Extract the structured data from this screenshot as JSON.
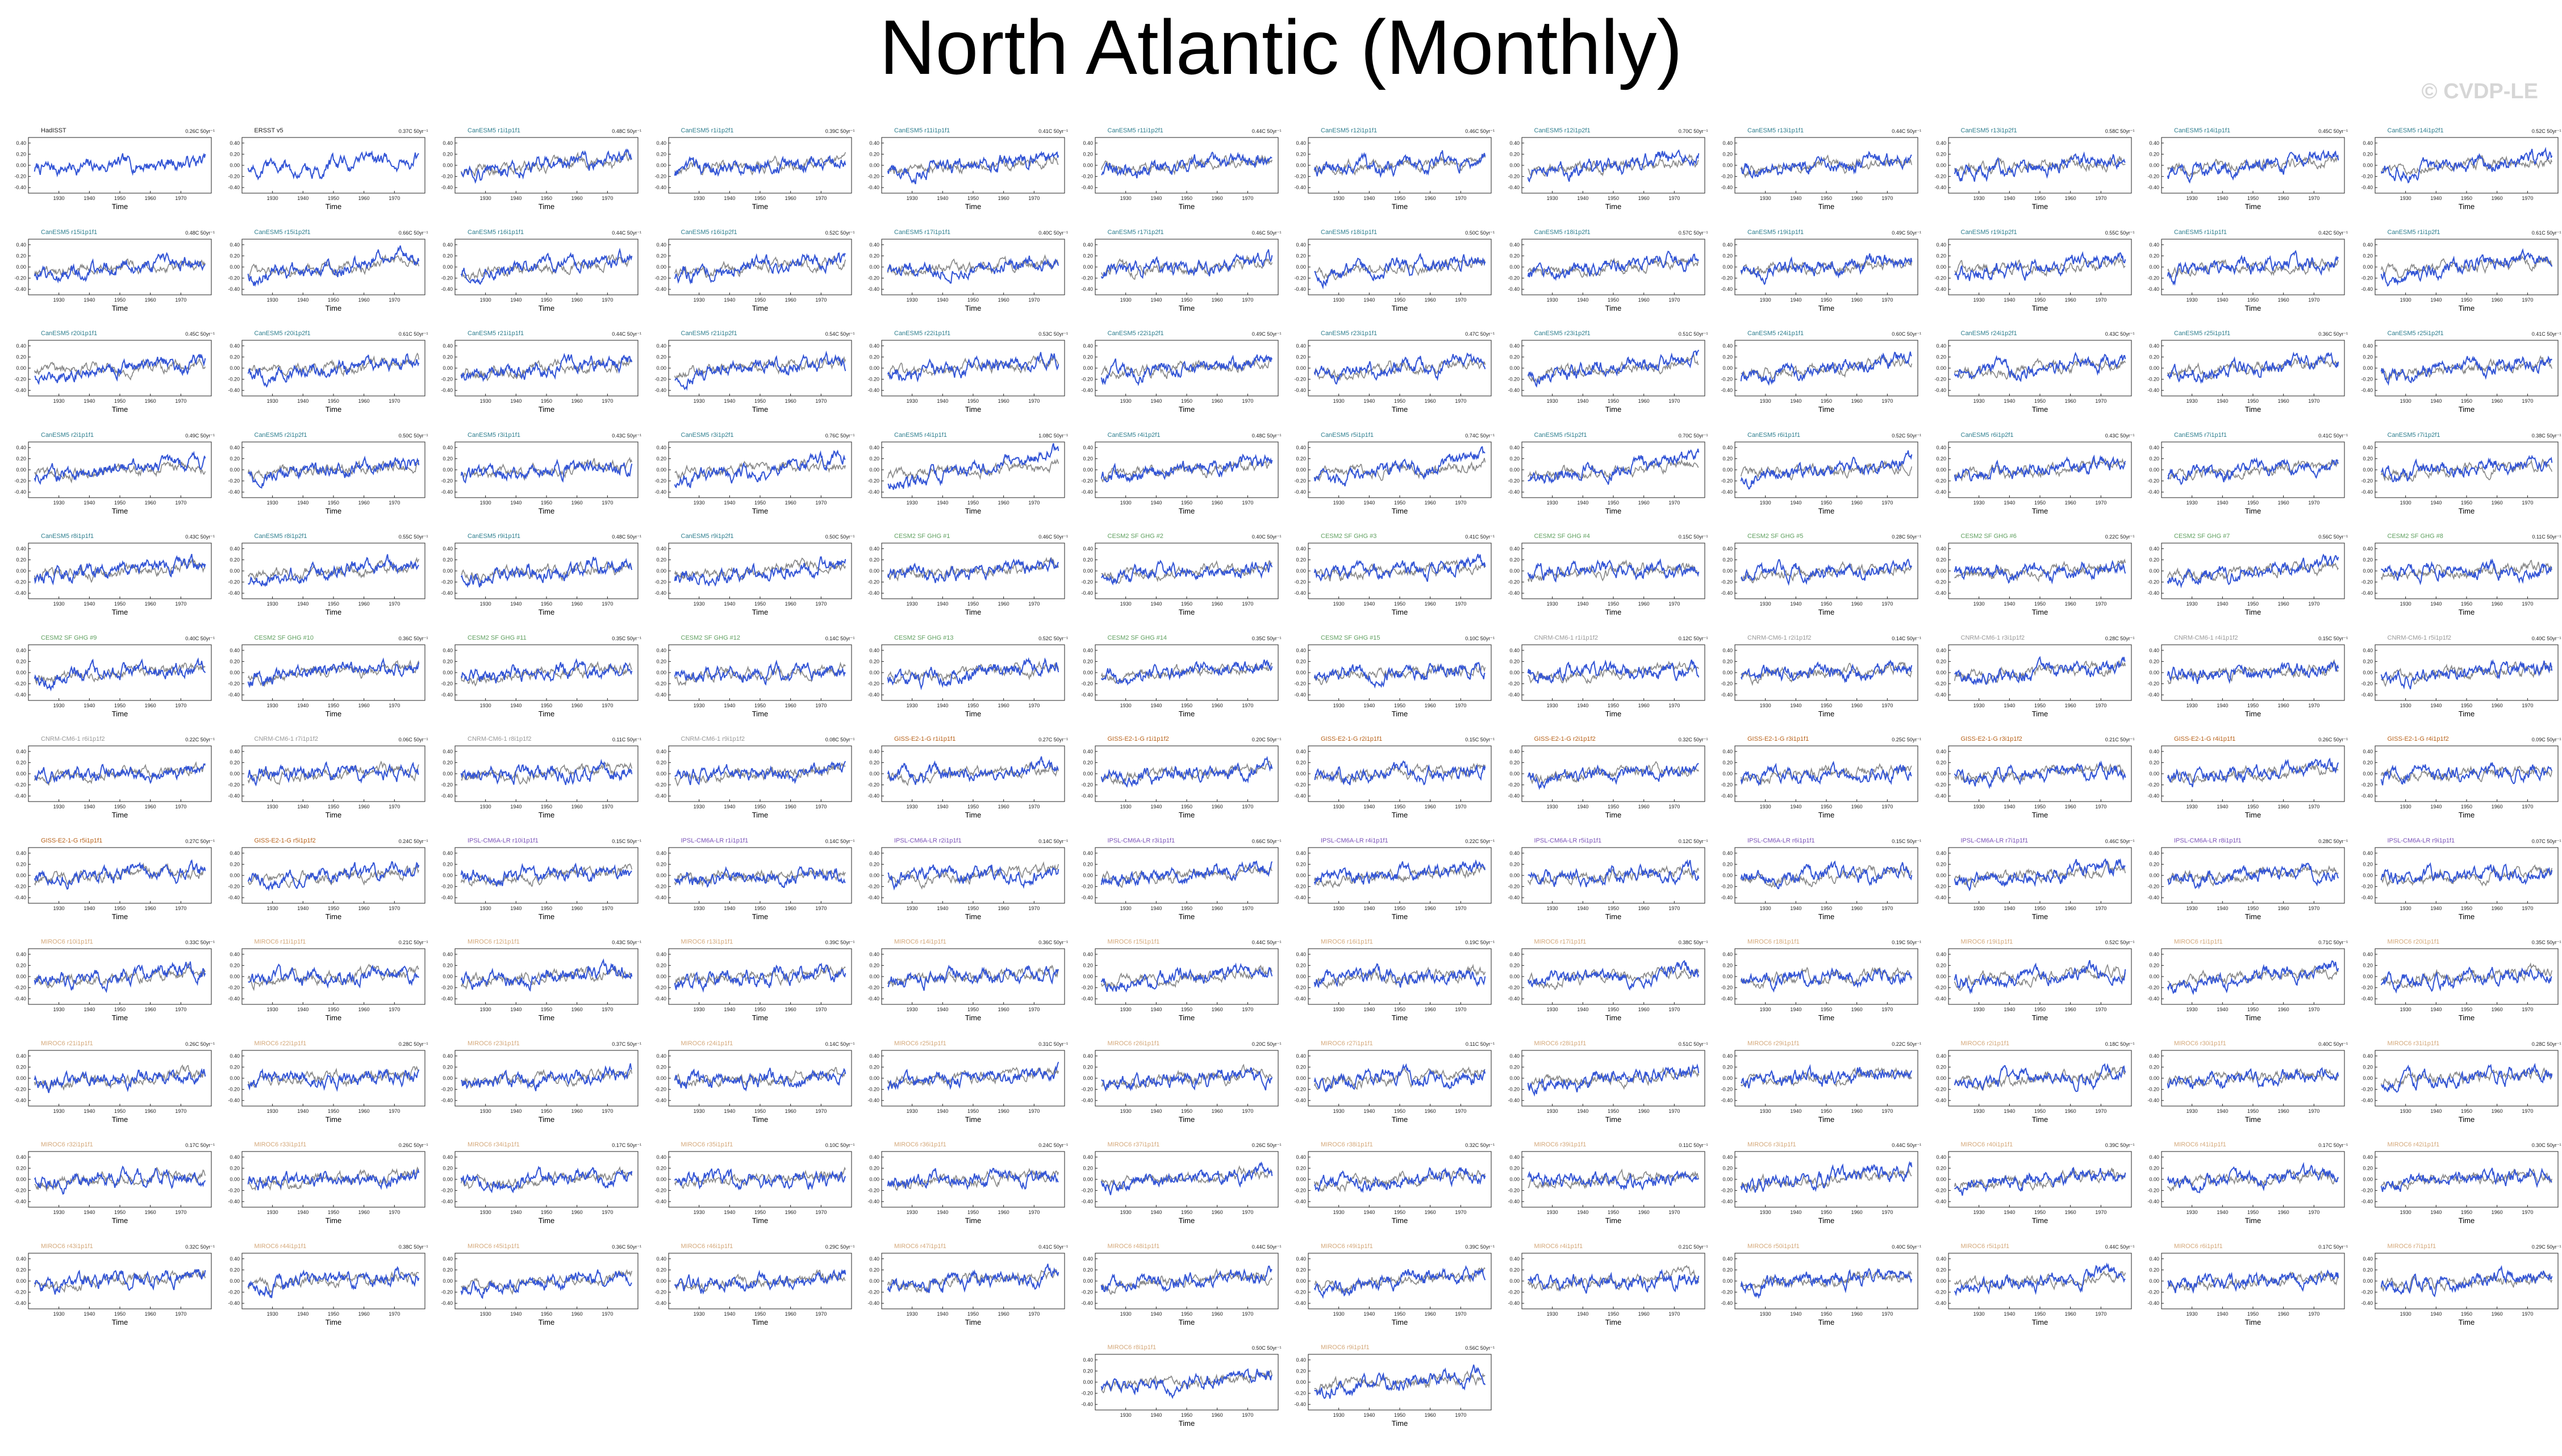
{
  "page": {
    "title": "North Atlantic (Monthly)",
    "watermark": "© CVDP-LE"
  },
  "colors": {
    "obs": "#3355d6",
    "ensemble": "#888888",
    "axis": "#222222",
    "watermark": "#d6d6d6",
    "title_obs": "#222222",
    "title_canesm5": "#2f7f8f",
    "title_cesm2": "#5f9f5f",
    "title_cnrm": "#999999",
    "title_giss": "#b8621a",
    "title_ipsl": "#7a52b8",
    "title_miroc": "#d4a87a"
  },
  "chart_data": {
    "type": "line",
    "layout": "small-multiples",
    "xlabel": "Time",
    "x_tick_labels": [
      "1930",
      "1940",
      "1950",
      "1960",
      "1970"
    ],
    "y_tick_labels": [
      "0.40",
      "0.20",
      "0.00",
      "-0.20",
      "-0.40"
    ],
    "xlim": [
      1920,
      1980
    ],
    "ylim": [
      -0.5,
      0.5
    ],
    "series_colors": {
      "obs": "#3355d6",
      "ensemble": "#888888"
    },
    "panel_count": 146,
    "panels": [
      {
        "title": "HadISST",
        "trend": "0.26C 50yr⁻¹",
        "title_color": "#222222"
      },
      {
        "title": "ERSST v5",
        "trend": "0.37C 50yr⁻¹",
        "title_color": "#222222"
      },
      {
        "title": "CanESM5 r1i1p1f1",
        "trend": "0.48C 50yr⁻¹",
        "title_color": "#2f7f8f"
      },
      {
        "title": "CanESM5 r1i1p2f1",
        "trend": "0.39C 50yr⁻¹",
        "title_color": "#2f7f8f"
      },
      {
        "title": "CanESM5 r11i1p1f1",
        "trend": "0.41C 50yr⁻¹",
        "title_color": "#2f7f8f"
      },
      {
        "title": "CanESM5 r11i1p2f1",
        "trend": "0.44C 50yr⁻¹",
        "title_color": "#2f7f8f"
      },
      {
        "title": "CanESM5 r12i1p1f1",
        "trend": "0.46C 50yr⁻¹",
        "title_color": "#2f7f8f"
      },
      {
        "title": "CanESM5 r12i1p2f1",
        "trend": "0.70C 50yr⁻¹",
        "title_color": "#2f7f8f"
      },
      {
        "title": "CanESM5 r13i1p1f1",
        "trend": "0.44C 50yr⁻¹",
        "title_color": "#2f7f8f"
      },
      {
        "title": "CanESM5 r13i1p2f1",
        "trend": "0.58C 50yr⁻¹",
        "title_color": "#2f7f8f"
      },
      {
        "title": "CanESM5 r14i1p1f1",
        "trend": "0.45C 50yr⁻¹",
        "title_color": "#2f7f8f"
      },
      {
        "title": "CanESM5 r14i1p2f1",
        "trend": "0.52C 50yr⁻¹",
        "title_color": "#2f7f8f"
      },
      {
        "title": "CanESM5 r15i1p1f1",
        "trend": "0.48C 50yr⁻¹",
        "title_color": "#2f7f8f"
      },
      {
        "title": "CanESM5 r15i1p2f1",
        "trend": "0.66C 50yr⁻¹",
        "title_color": "#2f7f8f"
      },
      {
        "title": "CanESM5 r16i1p1f1",
        "trend": "0.44C 50yr⁻¹",
        "title_color": "#2f7f8f"
      },
      {
        "title": "CanESM5 r16i1p2f1",
        "trend": "0.52C 50yr⁻¹",
        "title_color": "#2f7f8f"
      },
      {
        "title": "CanESM5 r17i1p1f1",
        "trend": "0.40C 50yr⁻¹",
        "title_color": "#2f7f8f"
      },
      {
        "title": "CanESM5 r17i1p2f1",
        "trend": "0.46C 50yr⁻¹",
        "title_color": "#2f7f8f"
      },
      {
        "title": "CanESM5 r18i1p1f1",
        "trend": "0.50C 50yr⁻¹",
        "title_color": "#2f7f8f"
      },
      {
        "title": "CanESM5 r18i1p2f1",
        "trend": "0.57C 50yr⁻¹",
        "title_color": "#2f7f8f"
      },
      {
        "title": "CanESM5 r19i1p1f1",
        "trend": "0.49C 50yr⁻¹",
        "title_color": "#2f7f8f"
      },
      {
        "title": "CanESM5 r19i1p2f1",
        "trend": "0.55C 50yr⁻¹",
        "title_color": "#2f7f8f"
      },
      {
        "title": "CanESM5 r1i1p1f1",
        "trend": "0.42C 50yr⁻¹",
        "title_color": "#2f7f8f"
      },
      {
        "title": "CanESM5 r1i1p2f1",
        "trend": "0.61C 50yr⁻¹",
        "title_color": "#2f7f8f"
      },
      {
        "title": "CanESM5 r20i1p1f1",
        "trend": "0.45C 50yr⁻¹",
        "title_color": "#2f7f8f"
      },
      {
        "title": "CanESM5 r20i1p2f1",
        "trend": "0.61C 50yr⁻¹",
        "title_color": "#2f7f8f"
      },
      {
        "title": "CanESM5 r21i1p1f1",
        "trend": "0.44C 50yr⁻¹",
        "title_color": "#2f7f8f"
      },
      {
        "title": "CanESM5 r21i1p2f1",
        "trend": "0.54C 50yr⁻¹",
        "title_color": "#2f7f8f"
      },
      {
        "title": "CanESM5 r22i1p1f1",
        "trend": "0.53C 50yr⁻¹",
        "title_color": "#2f7f8f"
      },
      {
        "title": "CanESM5 r22i1p2f1",
        "trend": "0.49C 50yr⁻¹",
        "title_color": "#2f7f8f"
      },
      {
        "title": "CanESM5 r23i1p1f1",
        "trend": "0.47C 50yr⁻¹",
        "title_color": "#2f7f8f"
      },
      {
        "title": "CanESM5 r23i1p2f1",
        "trend": "0.51C 50yr⁻¹",
        "title_color": "#2f7f8f"
      },
      {
        "title": "CanESM5 r24i1p1f1",
        "trend": "0.60C 50yr⁻¹",
        "title_color": "#2f7f8f"
      },
      {
        "title": "CanESM5 r24i1p2f1",
        "trend": "0.43C 50yr⁻¹",
        "title_color": "#2f7f8f"
      },
      {
        "title": "CanESM5 r25i1p1f1",
        "trend": "0.36C 50yr⁻¹",
        "title_color": "#2f7f8f"
      },
      {
        "title": "CanESM5 r25i1p2f1",
        "trend": "0.41C 50yr⁻¹",
        "title_color": "#2f7f8f"
      },
      {
        "title": "CanESM5 r2i1p1f1",
        "trend": "0.49C 50yr⁻¹",
        "title_color": "#2f7f8f"
      },
      {
        "title": "CanESM5 r2i1p2f1",
        "trend": "0.50C 50yr⁻¹",
        "title_color": "#2f7f8f"
      },
      {
        "title": "CanESM5 r3i1p1f1",
        "trend": "0.43C 50yr⁻¹",
        "title_color": "#2f7f8f"
      },
      {
        "title": "CanESM5 r3i1p2f1",
        "trend": "0.76C 50yr⁻¹",
        "title_color": "#2f7f8f"
      },
      {
        "title": "CanESM5 r4i1p1f1",
        "trend": "1.08C 50yr⁻¹",
        "title_color": "#2f7f8f"
      },
      {
        "title": "CanESM5 r4i1p2f1",
        "trend": "0.48C 50yr⁻¹",
        "title_color": "#2f7f8f"
      },
      {
        "title": "CanESM5 r5i1p1f1",
        "trend": "0.74C 50yr⁻¹",
        "title_color": "#2f7f8f"
      },
      {
        "title": "CanESM5 r5i1p2f1",
        "trend": "0.70C 50yr⁻¹",
        "title_color": "#2f7f8f"
      },
      {
        "title": "CanESM5 r6i1p1f1",
        "trend": "0.52C 50yr⁻¹",
        "title_color": "#2f7f8f"
      },
      {
        "title": "CanESM5 r6i1p2f1",
        "trend": "0.43C 50yr⁻¹",
        "title_color": "#2f7f8f"
      },
      {
        "title": "CanESM5 r7i1p1f1",
        "trend": "0.41C 50yr⁻¹",
        "title_color": "#2f7f8f"
      },
      {
        "title": "CanESM5 r7i1p2f1",
        "trend": "0.38C 50yr⁻¹",
        "title_color": "#2f7f8f"
      },
      {
        "title": "CanESM5 r8i1p1f1",
        "trend": "0.43C 50yr⁻¹",
        "title_color": "#2f7f8f"
      },
      {
        "title": "CanESM5 r8i1p2f1",
        "trend": "0.55C 50yr⁻¹",
        "title_color": "#2f7f8f"
      },
      {
        "title": "CanESM5 r9i1p1f1",
        "trend": "0.48C 50yr⁻¹",
        "title_color": "#2f7f8f"
      },
      {
        "title": "CanESM5 r9i1p2f1",
        "trend": "0.50C 50yr⁻¹",
        "title_color": "#2f7f8f"
      },
      {
        "title": "CESM2 SF GHG #1",
        "trend": "0.46C 50yr⁻¹",
        "title_color": "#5f9f5f"
      },
      {
        "title": "CESM2 SF GHG #2",
        "trend": "0.40C 50yr⁻¹",
        "title_color": "#5f9f5f"
      },
      {
        "title": "CESM2 SF GHG #3",
        "trend": "0.41C 50yr⁻¹",
        "title_color": "#5f9f5f"
      },
      {
        "title": "CESM2 SF GHG #4",
        "trend": "0.15C 50yr⁻¹",
        "title_color": "#5f9f5f"
      },
      {
        "title": "CESM2 SF GHG #5",
        "trend": "0.28C 50yr⁻¹",
        "title_color": "#5f9f5f"
      },
      {
        "title": "CESM2 SF GHG #6",
        "trend": "0.22C 50yr⁻¹",
        "title_color": "#5f9f5f"
      },
      {
        "title": "CESM2 SF GHG #7",
        "trend": "0.56C 50yr⁻¹",
        "title_color": "#5f9f5f"
      },
      {
        "title": "CESM2 SF GHG #8",
        "trend": "0.11C 50yr⁻¹",
        "title_color": "#5f9f5f"
      },
      {
        "title": "CESM2 SF GHG #9",
        "trend": "0.40C 50yr⁻¹",
        "title_color": "#5f9f5f"
      },
      {
        "title": "CESM2 SF GHG #10",
        "trend": "0.36C 50yr⁻¹",
        "title_color": "#5f9f5f"
      },
      {
        "title": "CESM2 SF GHG #11",
        "trend": "0.35C 50yr⁻¹",
        "title_color": "#5f9f5f"
      },
      {
        "title": "CESM2 SF GHG #12",
        "trend": "0.14C 50yr⁻¹",
        "title_color": "#5f9f5f"
      },
      {
        "title": "CESM2 SF GHG #13",
        "trend": "0.52C 50yr⁻¹",
        "title_color": "#5f9f5f"
      },
      {
        "title": "CESM2 SF GHG #14",
        "trend": "0.35C 50yr⁻¹",
        "title_color": "#5f9f5f"
      },
      {
        "title": "CESM2 SF GHG #15",
        "trend": "0.10C 50yr⁻¹",
        "title_color": "#5f9f5f"
      },
      {
        "title": "CNRM-CM6-1 r1i1p1f2",
        "trend": "0.12C 50yr⁻¹",
        "title_color": "#999999"
      },
      {
        "title": "CNRM-CM6-1 r2i1p1f2",
        "trend": "0.14C 50yr⁻¹",
        "title_color": "#999999"
      },
      {
        "title": "CNRM-CM6-1 r3i1p1f2",
        "trend": "0.28C 50yr⁻¹",
        "title_color": "#999999"
      },
      {
        "title": "CNRM-CM6-1 r4i1p1f2",
        "trend": "0.15C 50yr⁻¹",
        "title_color": "#999999"
      },
      {
        "title": "CNRM-CM6-1 r5i1p1f2",
        "trend": "0.40C 50yr⁻¹",
        "title_color": "#999999"
      },
      {
        "title": "CNRM-CM6-1 r6i1p1f2",
        "trend": "0.22C 50yr⁻¹",
        "title_color": "#999999"
      },
      {
        "title": "CNRM-CM6-1 r7i1p1f2",
        "trend": "0.06C 50yr⁻¹",
        "title_color": "#999999"
      },
      {
        "title": "CNRM-CM6-1 r8i1p1f2",
        "trend": "0.11C 50yr⁻¹",
        "title_color": "#999999"
      },
      {
        "title": "CNRM-CM6-1 r9i1p1f2",
        "trend": "0.08C 50yr⁻¹",
        "title_color": "#999999"
      },
      {
        "title": "GISS-E2-1-G r1i1p1f1",
        "trend": "0.27C 50yr⁻¹",
        "title_color": "#b8621a"
      },
      {
        "title": "GISS-E2-1-G r1i1p1f2",
        "trend": "0.20C 50yr⁻¹",
        "title_color": "#b8621a"
      },
      {
        "title": "GISS-E2-1-G r2i1p1f1",
        "trend": "0.15C 50yr⁻¹",
        "title_color": "#b8621a"
      },
      {
        "title": "GISS-E2-1-G r2i1p1f2",
        "trend": "0.32C 50yr⁻¹",
        "title_color": "#b8621a"
      },
      {
        "title": "GISS-E2-1-G r3i1p1f1",
        "trend": "0.25C 50yr⁻¹",
        "title_color": "#b8621a"
      },
      {
        "title": "GISS-E2-1-G r3i1p1f2",
        "trend": "0.21C 50yr⁻¹",
        "title_color": "#b8621a"
      },
      {
        "title": "GISS-E2-1-G r4i1p1f1",
        "trend": "0.26C 50yr⁻¹",
        "title_color": "#b8621a"
      },
      {
        "title": "GISS-E2-1-G r4i1p1f2",
        "trend": "0.09C 50yr⁻¹",
        "title_color": "#b8621a"
      },
      {
        "title": "GISS-E2-1-G r5i1p1f1",
        "trend": "0.27C 50yr⁻¹",
        "title_color": "#b8621a"
      },
      {
        "title": "GISS-E2-1-G r5i1p1f2",
        "trend": "0.24C 50yr⁻¹",
        "title_color": "#b8621a"
      },
      {
        "title": "IPSL-CM6A-LR r10i1p1f1",
        "trend": "0.15C 50yr⁻¹",
        "title_color": "#7a52b8"
      },
      {
        "title": "IPSL-CM6A-LR r1i1p1f1",
        "trend": "0.14C 50yr⁻¹",
        "title_color": "#7a52b8"
      },
      {
        "title": "IPSL-CM6A-LR r2i1p1f1",
        "trend": "0.14C 50yr⁻¹",
        "title_color": "#7a52b8"
      },
      {
        "title": "IPSL-CM6A-LR r3i1p1f1",
        "trend": "0.66C 50yr⁻¹",
        "title_color": "#7a52b8"
      },
      {
        "title": "IPSL-CM6A-LR r4i1p1f1",
        "trend": "0.22C 50yr⁻¹",
        "title_color": "#7a52b8"
      },
      {
        "title": "IPSL-CM6A-LR r5i1p1f1",
        "trend": "0.12C 50yr⁻¹",
        "title_color": "#7a52b8"
      },
      {
        "title": "IPSL-CM6A-LR r6i1p1f1",
        "trend": "0.15C 50yr⁻¹",
        "title_color": "#7a52b8"
      },
      {
        "title": "IPSL-CM6A-LR r7i1p1f1",
        "trend": "0.46C 50yr⁻¹",
        "title_color": "#7a52b8"
      },
      {
        "title": "IPSL-CM6A-LR r8i1p1f1",
        "trend": "0.28C 50yr⁻¹",
        "title_color": "#7a52b8"
      },
      {
        "title": "IPSL-CM6A-LR r9i1p1f1",
        "trend": "0.07C 50yr⁻¹",
        "title_color": "#7a52b8"
      },
      {
        "title": "MIROC6 r10i1p1f1",
        "trend": "0.33C 50yr⁻¹",
        "title_color": "#d4a87a"
      },
      {
        "title": "MIROC6 r11i1p1f1",
        "trend": "0.21C 50yr⁻¹",
        "title_color": "#d4a87a"
      },
      {
        "title": "MIROC6 r12i1p1f1",
        "trend": "0.43C 50yr⁻¹",
        "title_color": "#d4a87a"
      },
      {
        "title": "MIROC6 r13i1p1f1",
        "trend": "0.39C 50yr⁻¹",
        "title_color": "#d4a87a"
      },
      {
        "title": "MIROC6 r14i1p1f1",
        "trend": "0.36C 50yr⁻¹",
        "title_color": "#d4a87a"
      },
      {
        "title": "MIROC6 r15i1p1f1",
        "trend": "0.44C 50yr⁻¹",
        "title_color": "#d4a87a"
      },
      {
        "title": "MIROC6 r16i1p1f1",
        "trend": "0.19C 50yr⁻¹",
        "title_color": "#d4a87a"
      },
      {
        "title": "MIROC6 r17i1p1f1",
        "trend": "0.38C 50yr⁻¹",
        "title_color": "#d4a87a"
      },
      {
        "title": "MIROC6 r18i1p1f1",
        "trend": "0.19C 50yr⁻¹",
        "title_color": "#d4a87a"
      },
      {
        "title": "MIROC6 r19i1p1f1",
        "trend": "0.52C 50yr⁻¹",
        "title_color": "#d4a87a"
      },
      {
        "title": "MIROC6 r1i1p1f1",
        "trend": "0.71C 50yr⁻¹",
        "title_color": "#d4a87a"
      },
      {
        "title": "MIROC6 r20i1p1f1",
        "trend": "0.35C 50yr⁻¹",
        "title_color": "#d4a87a"
      },
      {
        "title": "MIROC6 r21i1p1f1",
        "trend": "0.26C 50yr⁻¹",
        "title_color": "#d4a87a"
      },
      {
        "title": "MIROC6 r22i1p1f1",
        "trend": "0.28C 50yr⁻¹",
        "title_color": "#d4a87a"
      },
      {
        "title": "MIROC6 r23i1p1f1",
        "trend": "0.37C 50yr⁻¹",
        "title_color": "#d4a87a"
      },
      {
        "title": "MIROC6 r24i1p1f1",
        "trend": "0.14C 50yr⁻¹",
        "title_color": "#d4a87a"
      },
      {
        "title": "MIROC6 r25i1p1f1",
        "trend": "0.31C 50yr⁻¹",
        "title_color": "#d4a87a"
      },
      {
        "title": "MIROC6 r26i1p1f1",
        "trend": "0.20C 50yr⁻¹",
        "title_color": "#d4a87a"
      },
      {
        "title": "MIROC6 r27i1p1f1",
        "trend": "0.11C 50yr⁻¹",
        "title_color": "#d4a87a"
      },
      {
        "title": "MIROC6 r28i1p1f1",
        "trend": "0.51C 50yr⁻¹",
        "title_color": "#d4a87a"
      },
      {
        "title": "MIROC6 r29i1p1f1",
        "trend": "0.22C 50yr⁻¹",
        "title_color": "#d4a87a"
      },
      {
        "title": "MIROC6 r2i1p1f1",
        "trend": "0.18C 50yr⁻¹",
        "title_color": "#d4a87a"
      },
      {
        "title": "MIROC6 r30i1p1f1",
        "trend": "0.40C 50yr⁻¹",
        "title_color": "#d4a87a"
      },
      {
        "title": "MIROC6 r31i1p1f1",
        "trend": "0.28C 50yr⁻¹",
        "title_color": "#d4a87a"
      },
      {
        "title": "MIROC6 r32i1p1f1",
        "trend": "0.17C 50yr⁻¹",
        "title_color": "#d4a87a"
      },
      {
        "title": "MIROC6 r33i1p1f1",
        "trend": "0.26C 50yr⁻¹",
        "title_color": "#d4a87a"
      },
      {
        "title": "MIROC6 r34i1p1f1",
        "trend": "0.17C 50yr⁻¹",
        "title_color": "#d4a87a"
      },
      {
        "title": "MIROC6 r35i1p1f1",
        "trend": "0.10C 50yr⁻¹",
        "title_color": "#d4a87a"
      },
      {
        "title": "MIROC6 r36i1p1f1",
        "trend": "0.24C 50yr⁻¹",
        "title_color": "#d4a87a"
      },
      {
        "title": "MIROC6 r37i1p1f1",
        "trend": "0.26C 50yr⁻¹",
        "title_color": "#d4a87a"
      },
      {
        "title": "MIROC6 r38i1p1f1",
        "trend": "0.32C 50yr⁻¹",
        "title_color": "#d4a87a"
      },
      {
        "title": "MIROC6 r39i1p1f1",
        "trend": "0.11C 50yr⁻¹",
        "title_color": "#d4a87a"
      },
      {
        "title": "MIROC6 r3i1p1f1",
        "trend": "0.44C 50yr⁻¹",
        "title_color": "#d4a87a"
      },
      {
        "title": "MIROC6 r40i1p1f1",
        "trend": "0.39C 50yr⁻¹",
        "title_color": "#d4a87a"
      },
      {
        "title": "MIROC6 r41i1p1f1",
        "trend": "0.17C 50yr⁻¹",
        "title_color": "#d4a87a"
      },
      {
        "title": "MIROC6 r42i1p1f1",
        "trend": "0.30C 50yr⁻¹",
        "title_color": "#d4a87a"
      },
      {
        "title": "MIROC6 r43i1p1f1",
        "trend": "0.32C 50yr⁻¹",
        "title_color": "#d4a87a"
      },
      {
        "title": "MIROC6 r44i1p1f1",
        "trend": "0.38C 50yr⁻¹",
        "title_color": "#d4a87a"
      },
      {
        "title": "MIROC6 r45i1p1f1",
        "trend": "0.36C 50yr⁻¹",
        "title_color": "#d4a87a"
      },
      {
        "title": "MIROC6 r46i1p1f1",
        "trend": "0.29C 50yr⁻¹",
        "title_color": "#d4a87a"
      },
      {
        "title": "MIROC6 r47i1p1f1",
        "trend": "0.41C 50yr⁻¹",
        "title_color": "#d4a87a"
      },
      {
        "title": "MIROC6 r48i1p1f1",
        "trend": "0.44C 50yr⁻¹",
        "title_color": "#d4a87a"
      },
      {
        "title": "MIROC6 r49i1p1f1",
        "trend": "0.39C 50yr⁻¹",
        "title_color": "#d4a87a"
      },
      {
        "title": "MIROC6 r4i1p1f1",
        "trend": "0.21C 50yr⁻¹",
        "title_color": "#d4a87a"
      },
      {
        "title": "MIROC6 r50i1p1f1",
        "trend": "0.40C 50yr⁻¹",
        "title_color": "#d4a87a"
      },
      {
        "title": "MIROC6 r5i1p1f1",
        "trend": "0.44C 50yr⁻¹",
        "title_color": "#d4a87a"
      },
      {
        "title": "MIROC6 r6i1p1f1",
        "trend": "0.17C 50yr⁻¹",
        "title_color": "#d4a87a"
      },
      {
        "title": "MIROC6 r7i1p1f1",
        "trend": "0.29C 50yr⁻¹",
        "title_color": "#d4a87a"
      },
      {
        "title": "MIROC6 r8i1p1f1",
        "trend": "0.50C 50yr⁻¹",
        "title_color": "#d4a87a"
      },
      {
        "title": "MIROC6 r9i1p1f1",
        "trend": "0.56C 50yr⁻¹",
        "title_color": "#d4a87a"
      }
    ]
  }
}
